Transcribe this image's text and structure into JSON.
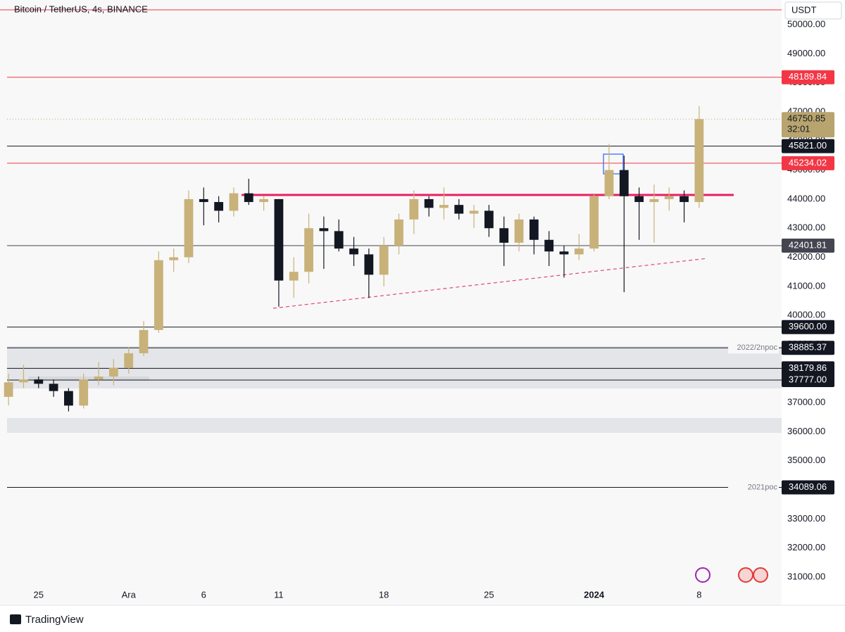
{
  "chart_data": {
    "type": "candlestick",
    "title": "Bitcoin / TetherUS, 4s, BINANCE",
    "currency": "USDT",
    "footer": "TradingView",
    "up_color": "#c8b27a",
    "down_color": "#131722",
    "xlim": [
      -2.1,
      49.4
    ],
    "xticks": [
      {
        "value": 0,
        "label": "25"
      },
      {
        "value": 6,
        "label": "Ara"
      },
      {
        "value": 11,
        "label": "6"
      },
      {
        "value": 16,
        "label": "11"
      },
      {
        "value": 23,
        "label": "18"
      },
      {
        "value": 30,
        "label": "25"
      },
      {
        "value": 37,
        "label": "2024"
      },
      {
        "value": 44,
        "label": "8"
      }
    ],
    "ylim": [
      30760,
      50847
    ],
    "yticks": [
      {
        "value": 31000,
        "label": "31000.00"
      },
      {
        "value": 32000,
        "label": "32000.00"
      },
      {
        "value": 33000,
        "label": "33000.00"
      },
      {
        "value": 34000,
        "label": "34000.00"
      },
      {
        "value": 35000,
        "label": "35000.00"
      },
      {
        "value": 36000,
        "label": "36000.00"
      },
      {
        "value": 37000,
        "label": "37000.00"
      },
      {
        "value": 38000,
        "label": "38000.00"
      },
      {
        "value": 39000,
        "label": "39000.00"
      },
      {
        "value": 40000,
        "label": "40000.00"
      },
      {
        "value": 41000,
        "label": "41000.00"
      },
      {
        "value": 42000,
        "label": "42000.00"
      },
      {
        "value": 43000,
        "label": "43000.00"
      },
      {
        "value": 44000,
        "label": "44000.00"
      },
      {
        "value": 45000,
        "label": "45000.00"
      },
      {
        "value": 46000,
        "label": "46000.00"
      },
      {
        "value": 47000,
        "label": "47000.00"
      },
      {
        "value": 48000,
        "label": "48000.00"
      },
      {
        "value": 49000,
        "label": "49000.00"
      },
      {
        "value": 50000,
        "label": "50000.00"
      }
    ],
    "x": [
      -2,
      -1,
      0,
      1,
      2,
      3,
      4,
      5,
      6,
      7,
      8,
      9,
      10,
      11,
      12,
      13,
      14,
      15,
      16,
      17,
      18,
      19,
      20,
      21,
      22,
      23,
      24,
      25,
      26,
      27,
      28,
      29,
      30,
      31,
      32,
      33,
      34,
      35,
      36,
      37,
      38,
      39,
      40,
      41,
      42,
      43,
      44
    ],
    "open": [
      37200,
      37700,
      37800,
      37650,
      37400,
      36900,
      37800,
      37900,
      38200,
      38700,
      39500,
      41900,
      42000,
      44000,
      43900,
      43600,
      44200,
      43900,
      44000,
      41200,
      41500,
      43000,
      42900,
      42300,
      42100,
      41400,
      42400,
      43300,
      44000,
      43700,
      43800,
      43500,
      43600,
      43000,
      42500,
      43300,
      42600,
      42200,
      42100,
      42300,
      44100,
      45000,
      44100,
      43900,
      44000,
      44100,
      43900
    ],
    "high": [
      38000,
      38300,
      37900,
      37800,
      37500,
      38000,
      38400,
      38500,
      38900,
      39800,
      42200,
      42300,
      44300,
      44400,
      44100,
      44400,
      44700,
      44100,
      44000,
      42000,
      43500,
      43400,
      43300,
      42700,
      42300,
      42700,
      43500,
      44300,
      44100,
      44400,
      44000,
      43800,
      43800,
      43400,
      43500,
      43400,
      42900,
      42400,
      42800,
      44200,
      45900,
      45500,
      44400,
      44500,
      44400,
      44300,
      47200
    ],
    "low": [
      36900,
      37500,
      37500,
      37200,
      36700,
      36800,
      37600,
      37600,
      38000,
      38600,
      39400,
      41500,
      41800,
      43100,
      43200,
      43400,
      43800,
      43600,
      40300,
      40600,
      41100,
      41600,
      42200,
      41700,
      40600,
      41000,
      42100,
      42800,
      43400,
      43300,
      43300,
      43000,
      42700,
      41700,
      42200,
      42100,
      41700,
      41300,
      41900,
      42200,
      44000,
      40800,
      42600,
      42500,
      43600,
      43200,
      43700
    ],
    "close": [
      37700,
      37800,
      37650,
      37400,
      36900,
      37800,
      37900,
      38200,
      38700,
      39500,
      41900,
      42000,
      44000,
      43900,
      43600,
      44200,
      43900,
      44000,
      41200,
      41500,
      43000,
      42900,
      42300,
      42100,
      41400,
      42400,
      43300,
      44000,
      43700,
      43800,
      43500,
      43600,
      43000,
      42500,
      43300,
      42600,
      42200,
      42100,
      42300,
      44100,
      45000,
      44100,
      43900,
      44000,
      44100,
      43900,
      46750
    ],
    "levels": [
      {
        "value": 48189.84,
        "label": "48189.84",
        "color": "#f23645"
      },
      {
        "value": 45821,
        "label": "45821.00",
        "color": "#131722"
      },
      {
        "value": 45234.02,
        "label": "45234.02",
        "color": "#f23645"
      },
      {
        "value": 42401.81,
        "label": "42401.81",
        "color": "#434651"
      },
      {
        "value": 39600,
        "label": "39600.00",
        "color": "#131722"
      },
      {
        "value": 38885.37,
        "label": "38885.37",
        "color": "#131722",
        "note": "2022/2npoc"
      },
      {
        "value": 38179.86,
        "label": "38179.86",
        "color": "#131722"
      },
      {
        "value": 37777,
        "label": "37777.00",
        "color": "#131722"
      },
      {
        "value": 34089.06,
        "label": "34089.06",
        "color": "#131722",
        "note": "2021poc"
      }
    ],
    "last_price": {
      "value": 46750.85,
      "label": "46750.85",
      "countdown": "32:01",
      "color": "#b8a46e"
    }
  }
}
